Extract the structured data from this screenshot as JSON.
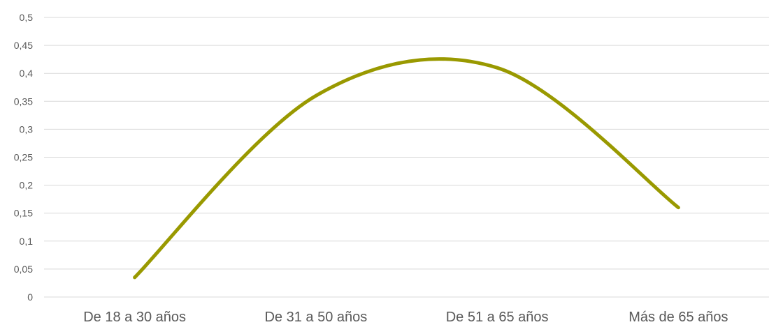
{
  "chart_data": {
    "type": "line",
    "categories": [
      "De 18 a 30 años",
      "De 31 a 50 años",
      "De 51 a 65 años",
      "Más de 65 años"
    ],
    "series": [
      {
        "values": [
          0.035,
          0.36,
          0.41,
          0.16
        ],
        "color": "#999900",
        "smooth": true
      }
    ],
    "ylim": [
      0,
      0.5
    ],
    "yticks": [
      0,
      0.05,
      0.1,
      0.15,
      0.2,
      0.25,
      0.3,
      0.35,
      0.4,
      0.45,
      0.5
    ],
    "ytick_labels": [
      "0",
      "0,05",
      "0,1",
      "0,15",
      "0,2",
      "0,25",
      "0,3",
      "0,35",
      "0,4",
      "0,45",
      "0,5"
    ],
    "grid": true,
    "grid_color": "#d9d9d9",
    "tick_label_color": "#595959",
    "title": "",
    "xlabel": "",
    "ylabel": ""
  }
}
